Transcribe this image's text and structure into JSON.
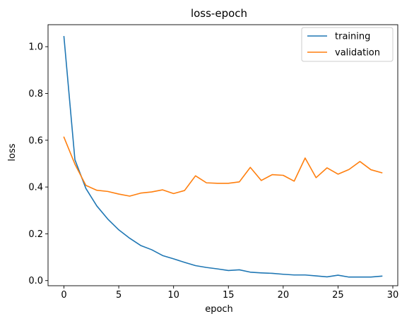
{
  "chart_data": {
    "type": "line",
    "title": "loss-epoch",
    "xlabel": "epoch",
    "ylabel": "loss",
    "xlim": [
      -1.45,
      30.45
    ],
    "ylim": [
      -0.022,
      1.094
    ],
    "xticks": [
      0,
      5,
      10,
      15,
      20,
      25,
      30
    ],
    "yticks": [
      0.0,
      0.2,
      0.4,
      0.6,
      0.8,
      1.0
    ],
    "xtick_labels": [
      "0",
      "5",
      "10",
      "15",
      "20",
      "25",
      "30"
    ],
    "ytick_labels": [
      "0.0",
      "0.2",
      "0.4",
      "0.6",
      "0.8",
      "1.0"
    ],
    "grid": false,
    "legend_position": "top-right",
    "x": [
      0,
      1,
      2,
      3,
      4,
      5,
      6,
      7,
      8,
      9,
      10,
      11,
      12,
      13,
      14,
      15,
      16,
      17,
      18,
      19,
      20,
      21,
      22,
      23,
      24,
      25,
      26,
      27,
      28,
      29
    ],
    "series": [
      {
        "name": "training",
        "color": "#1f77b4",
        "values": [
          1.043,
          0.517,
          0.394,
          0.319,
          0.263,
          0.217,
          0.181,
          0.15,
          0.132,
          0.107,
          0.093,
          0.078,
          0.064,
          0.056,
          0.05,
          0.043,
          0.046,
          0.036,
          0.033,
          0.031,
          0.027,
          0.024,
          0.024,
          0.02,
          0.016,
          0.023,
          0.015,
          0.015,
          0.015,
          0.019
        ]
      },
      {
        "name": "validation",
        "color": "#ff7f0e",
        "values": [
          0.613,
          0.498,
          0.407,
          0.386,
          0.381,
          0.37,
          0.361,
          0.374,
          0.379,
          0.388,
          0.372,
          0.385,
          0.448,
          0.418,
          0.416,
          0.416,
          0.422,
          0.484,
          0.428,
          0.453,
          0.45,
          0.425,
          0.524,
          0.44,
          0.482,
          0.455,
          0.475,
          0.509,
          0.474,
          0.461
        ]
      }
    ]
  }
}
